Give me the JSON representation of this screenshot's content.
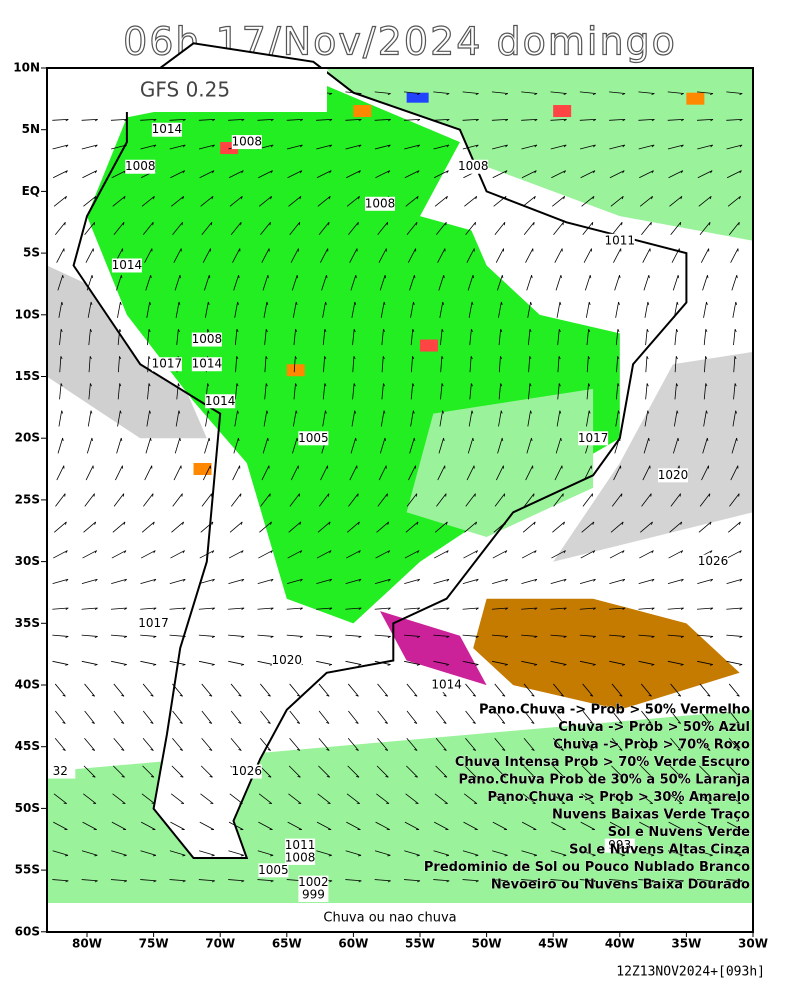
{
  "header": {
    "title": "06h 17/Nov/2024 domingo",
    "model": "GFS 0.25"
  },
  "axes": {
    "lat_labels": [
      "10N",
      "5N",
      "EQ",
      "5S",
      "10S",
      "15S",
      "20S",
      "25S",
      "30S",
      "35S",
      "40S",
      "45S",
      "50S",
      "55S",
      "60S"
    ],
    "lon_labels": [
      "80W",
      "75W",
      "70W",
      "65W",
      "60W",
      "55W",
      "50W",
      "45W",
      "40W",
      "35W",
      "30W"
    ]
  },
  "isobars": [
    "1014",
    "1008",
    "1008",
    "1008",
    "1008",
    "1011",
    "1014",
    "1008",
    "1017",
    "1014",
    "1014",
    "1005",
    "1017",
    "1020",
    "1026",
    "1020",
    "1014",
    "1017",
    "1026",
    "1011",
    "1008",
    "1005",
    "1002",
    "999",
    "993",
    "32"
  ],
  "legend": [
    "Pano.Chuva -> Prob > 50% Vermelho",
    "Chuva -> Prob > 50% Azul",
    "Chuva -> Prob > 70% Roxo",
    "Chuva Intensa Prob > 70% Verde Escuro",
    "Pano.Chuva Prob de 30% a 50% Laranja",
    "Pano.Chuva -> Prob > 30% Amarelo",
    "Nuvens Baixas Verde Traço",
    "Sol e Nuvens Verde",
    "Sol e Nuvens Altas Cinza",
    "Predominio de Sol ou Pouco Nublado Branco",
    "Nevoeiro ou Nuvens Baixa Dourado"
  ],
  "footer": {
    "caption": "Chuva ou nao chuva",
    "run": "12Z13NOV2024+[093h]"
  }
}
